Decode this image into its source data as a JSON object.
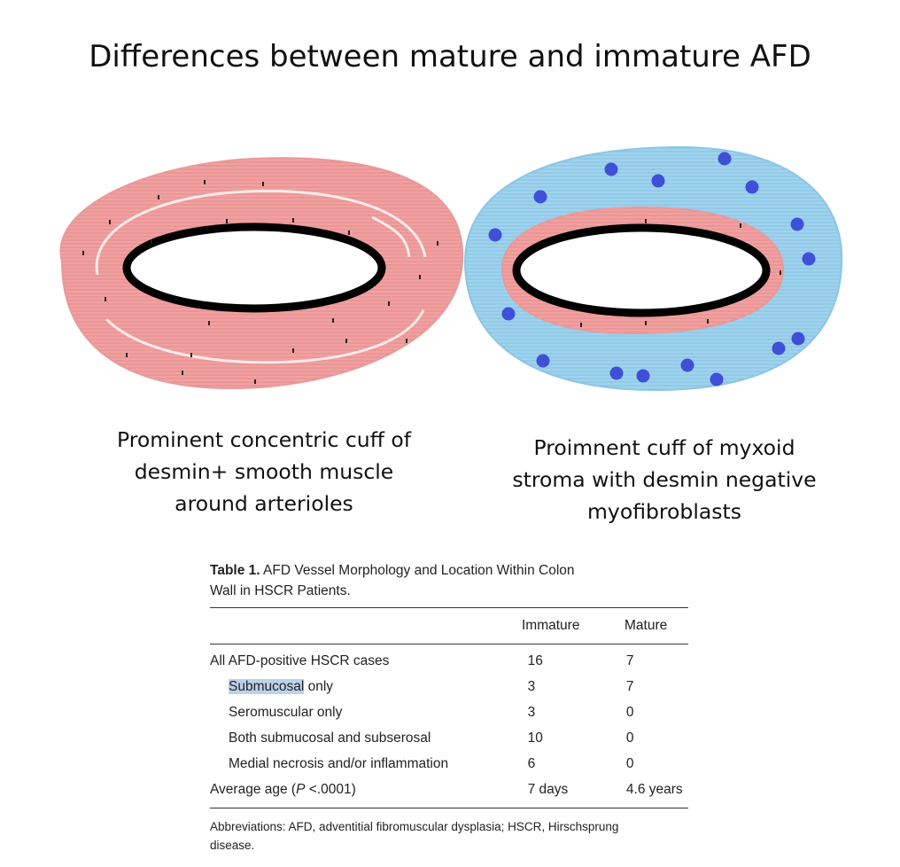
{
  "title": "Differences between mature and immature AFD",
  "captions": {
    "left": [
      "Prominent concentric cuff of",
      "desmin+ smooth muscle",
      "around arterioles"
    ],
    "right": [
      "Proimnent cuff of myxoid",
      "stroma with desmin negative",
      "myofibroblasts"
    ]
  },
  "colors": {
    "smooth_muscle": "#f2a0a0",
    "myxoid_stroma": "#9fd3ee",
    "myofibroblast_dot": "#3f4fd8",
    "lumen_outline": "#000000"
  },
  "table": {
    "label": "Table 1.",
    "title_rest": " AFD Vessel Morphology and Location Within Colon",
    "title_line2": "Wall in HSCR Patients.",
    "headers": [
      "",
      "Immature",
      "Mature"
    ],
    "rows": [
      {
        "label": "All AFD-positive HSCR cases",
        "immature": "16",
        "mature": "7"
      },
      {
        "label_highlight": "Submucosal",
        "label_rest": " only",
        "immature": "3",
        "mature": "7"
      },
      {
        "label": "Seromuscular only",
        "immature": "3",
        "mature": "0"
      },
      {
        "label": "Both submucosal and subserosal",
        "immature": "10",
        "mature": "0"
      },
      {
        "label": "Medial necrosis and/or inflammation",
        "immature": "6",
        "mature": "0"
      },
      {
        "label_pre": "Average age (",
        "label_italic": "P",
        "label_post": " <.0001)",
        "immature": "7 days",
        "mature": "4.6 years"
      }
    ],
    "abbreviations_line1": "Abbreviations: AFD, adventitial fibromuscular dysplasia; HSCR, Hirschsprung",
    "abbreviations_line2": "disease."
  }
}
